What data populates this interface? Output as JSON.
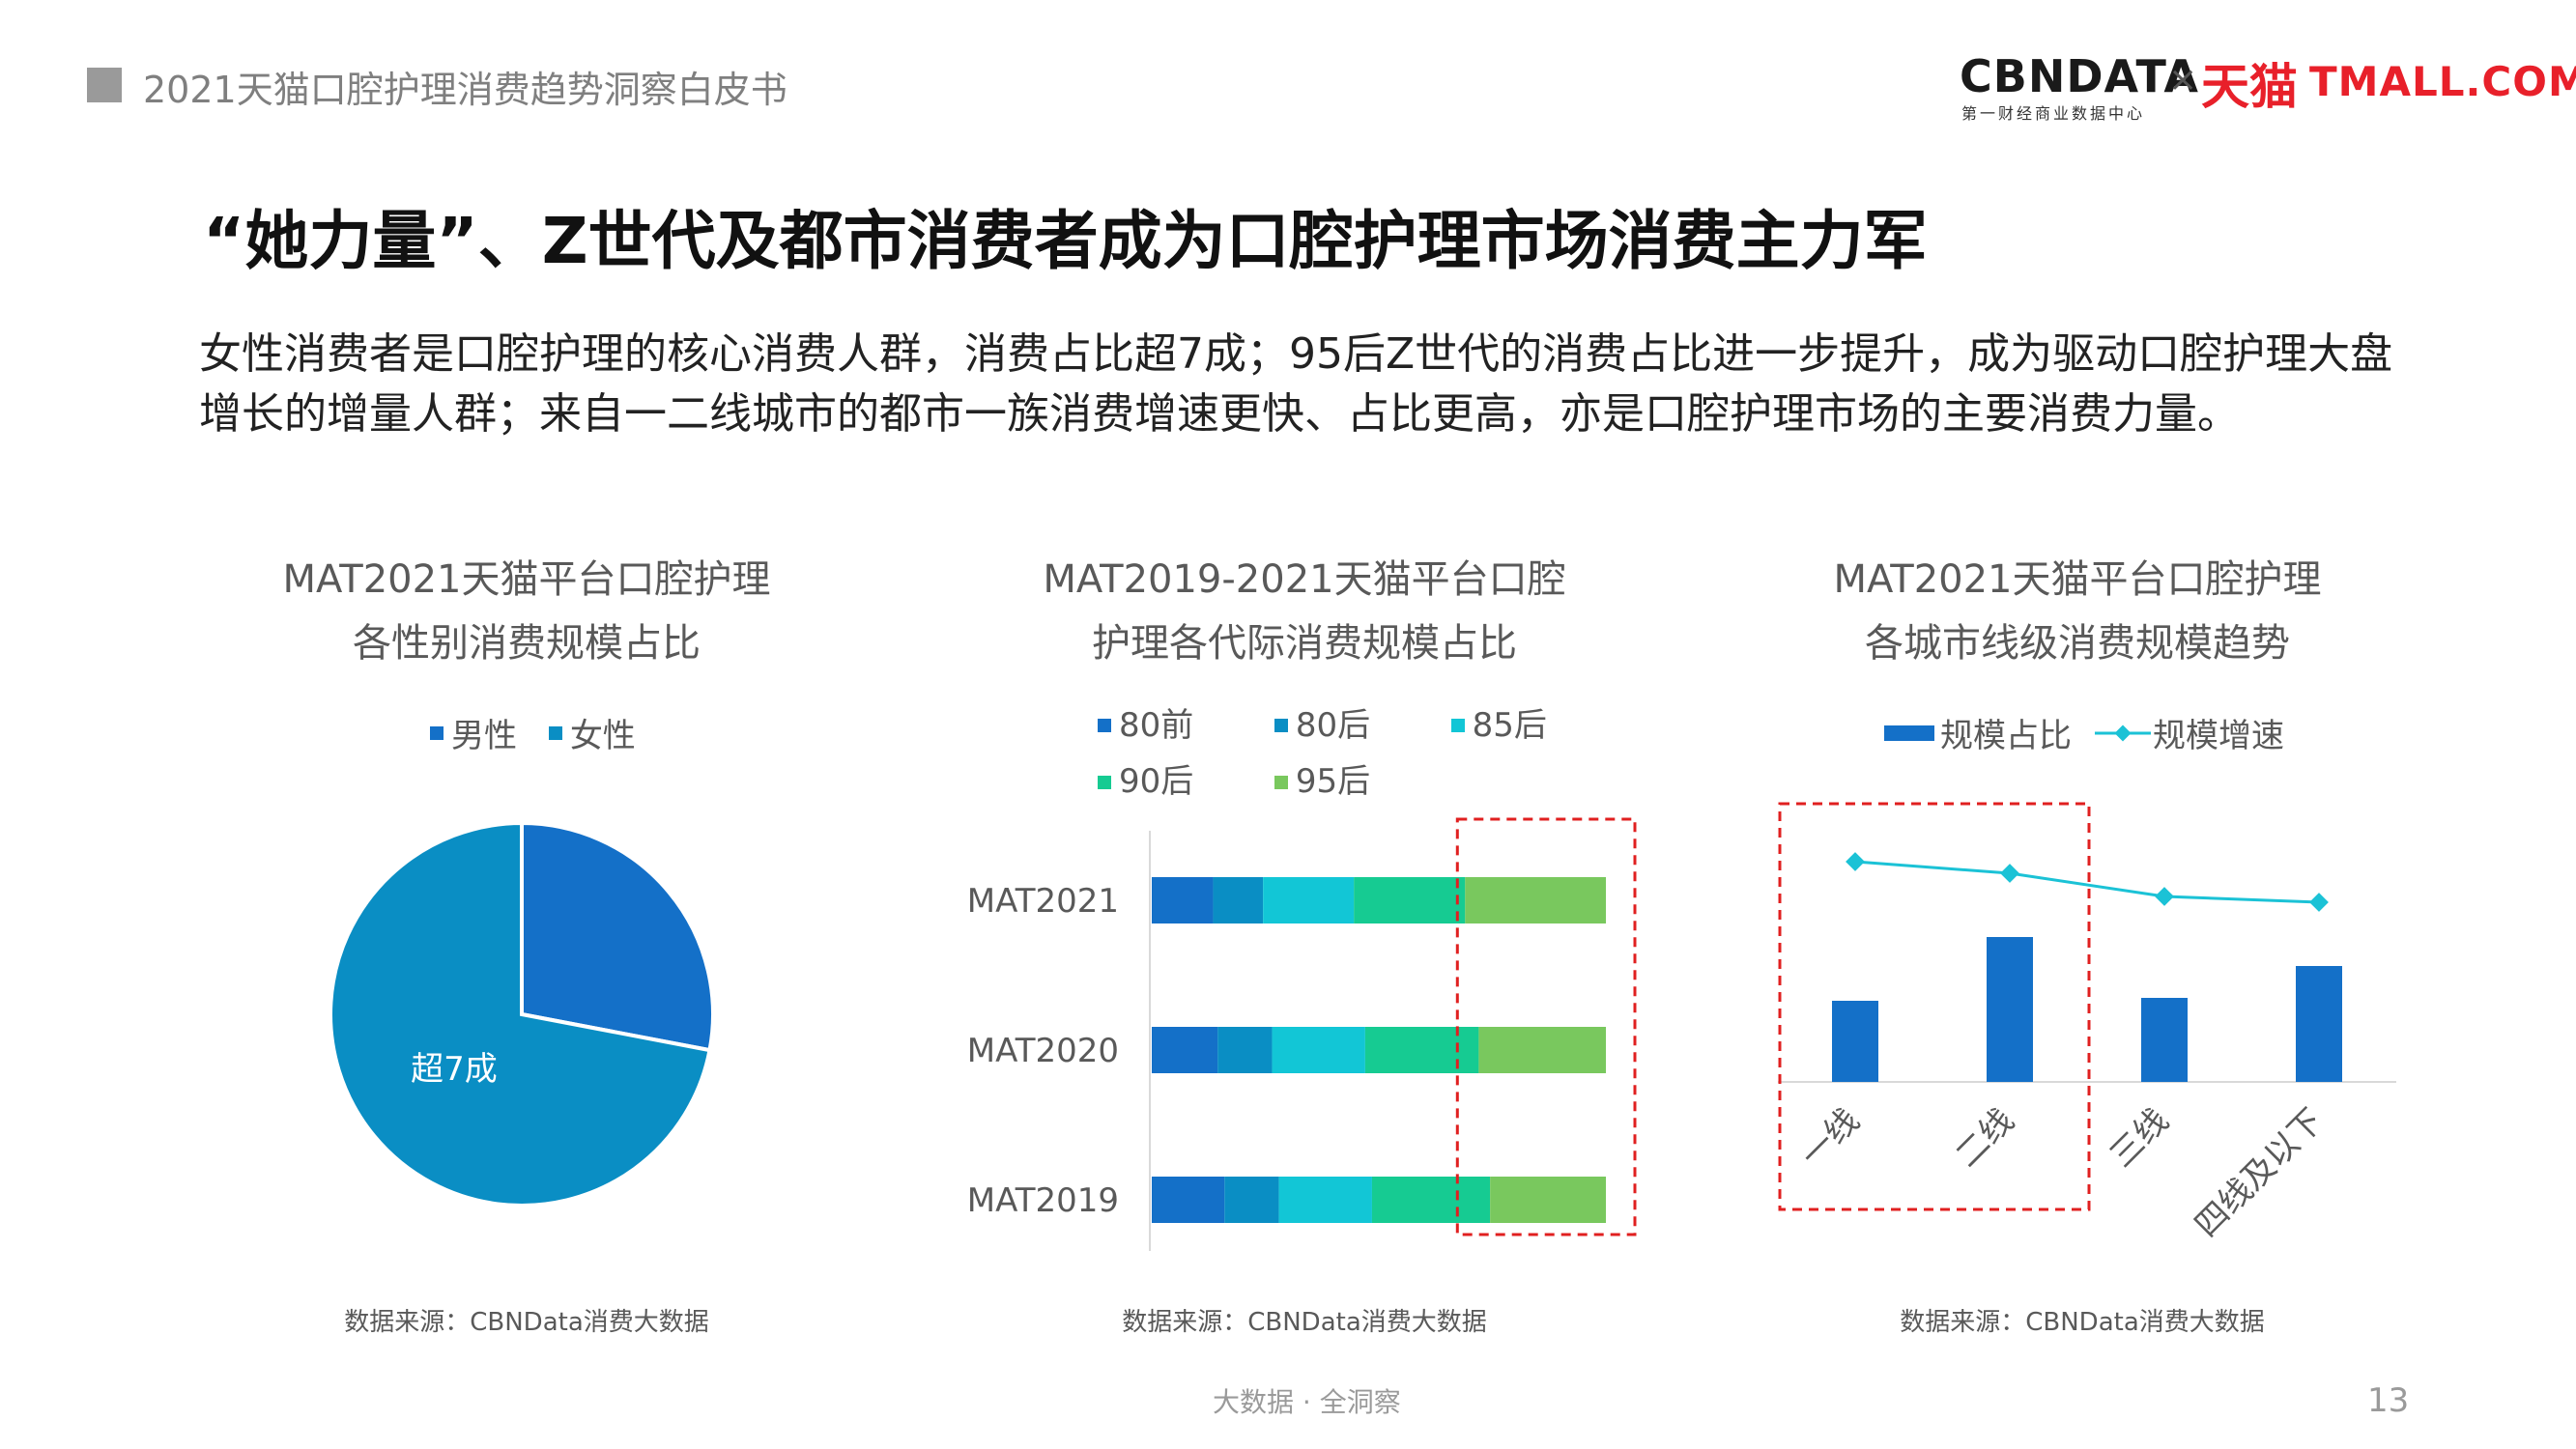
{
  "header": {
    "report_title": "2021天猫口腔护理消费趋势洞察白皮书",
    "logo_cbn": "CBNDATA",
    "logo_cbn_sub": "第一财经商业数据中心",
    "logo_x": "×",
    "logo_tmall_cn": "天猫",
    "logo_tmall_en": "TMALL.COM"
  },
  "slide": {
    "title": "“她力量”、Z世代及都市消费者成为口腔护理市场消费主力军",
    "description": "女性消费者是口腔护理的核心消费人群，消费占比超7成；95后Z世代的消费占比进一步提升，成为驱动口腔护理大盘增长的增量人群；来自一二线城市的都市一族消费增速更快、占比更高，亦是口腔护理市场的主要消费力量。"
  },
  "footer": {
    "text": "大数据 · 全洞察",
    "page": "13"
  },
  "colors": {
    "male": "#1470c8",
    "female": "#0a8ec4",
    "c80qian": "#1470c8",
    "c80hou": "#0a8ec4",
    "c85hou": "#12c6d6",
    "c90hou": "#16cb92",
    "c95hou": "#79c85e",
    "bar": "#1470c8",
    "line": "#1bc2d6",
    "highlight": "#e02020"
  },
  "chart_data": [
    {
      "type": "pie",
      "title_line1": "MAT2021天猫平台口腔护理",
      "title_line2": "各性别消费规模占比",
      "categories": [
        "男性",
        "女性"
      ],
      "values": [
        28,
        72
      ],
      "annotation": "超7成",
      "source": "数据来源：CBNData消费大数据"
    },
    {
      "type": "bar",
      "orientation": "horizontal",
      "stacked": "percent",
      "title_line1": "MAT2019-2021天猫平台口腔",
      "title_line2": "护理各代际消费规模占比",
      "categories": [
        "MAT2021",
        "MAT2020",
        "MAT2019"
      ],
      "series": [
        {
          "name": "80前",
          "values": [
            13.5,
            14.5,
            16
          ]
        },
        {
          "name": "80后",
          "values": [
            11,
            12,
            12
          ]
        },
        {
          "name": "85后",
          "values": [
            20,
            20.5,
            20.5
          ]
        },
        {
          "name": "90后",
          "values": [
            24.5,
            25,
            26
          ]
        },
        {
          "name": "95后",
          "values": [
            31,
            28,
            25.5
          ]
        }
      ],
      "highlight": "95后",
      "source": "数据来源：CBNData消费大数据"
    },
    {
      "type": "bar",
      "title_line1": "MAT2021天猫平台口腔护理",
      "title_line2": "各城市线级消费规模趋势",
      "categories": [
        "一线",
        "二线",
        "三线",
        "四线及以下"
      ],
      "series": [
        {
          "name": "规模占比",
          "type": "bar",
          "values": [
            28,
            50,
            29,
            40
          ]
        },
        {
          "name": "规模增速",
          "type": "line",
          "values": [
            76,
            72,
            64,
            62
          ]
        }
      ],
      "ylim": [
        0,
        100
      ],
      "highlight": [
        "一线",
        "二线"
      ],
      "source": "数据来源：CBNData消费大数据"
    }
  ]
}
